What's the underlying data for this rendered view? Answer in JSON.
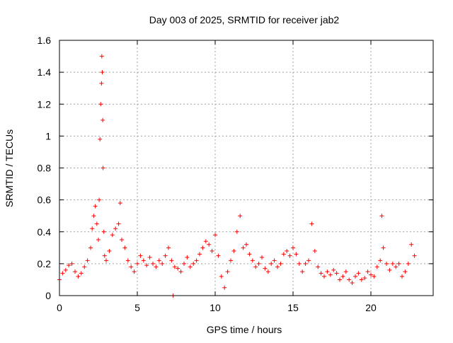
{
  "chart_data": {
    "type": "scatter",
    "title": "Day 003 of 2025, SRMTID for receiver jab2",
    "xlabel": "GPS time / hours",
    "ylabel": "SRMTID / TECUs",
    "xlim": [
      0,
      24
    ],
    "ylim": [
      0,
      1.6
    ],
    "xticks": [
      0,
      5,
      10,
      15,
      20
    ],
    "xtick_labels": [
      "0",
      "5",
      "10",
      "15",
      "20"
    ],
    "yticks": [
      0,
      0.2,
      0.4,
      0.6,
      0.8,
      1,
      1.2,
      1.4,
      1.6
    ],
    "ytick_labels": [
      "0",
      "0.2",
      "0.4",
      "0.6",
      "0.8",
      "1",
      "1.2",
      "1.4",
      "1.6"
    ],
    "grid": true,
    "marker": "+",
    "color": "#ff0000",
    "series": [
      {
        "name": "SRMTID",
        "x": [
          0.0,
          0.2,
          0.4,
          0.6,
          0.8,
          1.0,
          1.2,
          1.4,
          1.6,
          1.8,
          2.0,
          2.1,
          2.2,
          2.3,
          2.4,
          2.5,
          2.55,
          2.6,
          2.65,
          2.7,
          2.72,
          2.75,
          2.78,
          2.8,
          2.85,
          2.9,
          3.0,
          3.2,
          3.4,
          3.6,
          3.8,
          3.9,
          4.0,
          4.2,
          4.4,
          4.6,
          4.8,
          5.0,
          5.2,
          5.4,
          5.6,
          5.8,
          6.0,
          6.2,
          6.4,
          6.6,
          6.8,
          7.0,
          7.2,
          7.3,
          7.4,
          7.6,
          7.8,
          8.0,
          8.2,
          8.4,
          8.6,
          8.8,
          9.0,
          9.2,
          9.4,
          9.6,
          9.8,
          10.0,
          10.2,
          10.4,
          10.6,
          10.8,
          11.0,
          11.2,
          11.4,
          11.6,
          11.8,
          12.0,
          12.2,
          12.4,
          12.6,
          12.8,
          13.0,
          13.2,
          13.4,
          13.6,
          13.8,
          14.0,
          14.2,
          14.4,
          14.6,
          14.8,
          15.0,
          15.2,
          15.4,
          15.6,
          15.8,
          16.0,
          16.2,
          16.4,
          16.6,
          16.8,
          17.0,
          17.2,
          17.4,
          17.6,
          17.8,
          18.0,
          18.2,
          18.4,
          18.6,
          18.8,
          19.0,
          19.2,
          19.4,
          19.6,
          19.8,
          20.0,
          20.2,
          20.4,
          20.6,
          20.7,
          20.8,
          21.0,
          21.2,
          21.4,
          21.6,
          21.8,
          22.0,
          22.2,
          22.4,
          22.6,
          22.8
        ],
        "y": [
          0.1,
          0.14,
          0.16,
          0.19,
          0.2,
          0.15,
          0.12,
          0.14,
          0.18,
          0.22,
          0.3,
          0.42,
          0.5,
          0.56,
          0.45,
          0.35,
          0.6,
          0.98,
          1.2,
          1.33,
          1.5,
          1.4,
          1.1,
          0.8,
          0.4,
          0.25,
          0.22,
          0.28,
          0.38,
          0.42,
          0.45,
          0.58,
          0.35,
          0.3,
          0.22,
          0.18,
          0.15,
          0.2,
          0.25,
          0.22,
          0.19,
          0.24,
          0.2,
          0.18,
          0.22,
          0.2,
          0.25,
          0.3,
          0.22,
          0.0,
          0.18,
          0.17,
          0.15,
          0.2,
          0.24,
          0.18,
          0.2,
          0.22,
          0.26,
          0.3,
          0.34,
          0.32,
          0.28,
          0.38,
          0.25,
          0.12,
          0.05,
          0.15,
          0.22,
          0.28,
          0.4,
          0.5,
          0.3,
          0.32,
          0.26,
          0.22,
          0.18,
          0.2,
          0.24,
          0.17,
          0.15,
          0.2,
          0.22,
          0.18,
          0.2,
          0.26,
          0.28,
          0.25,
          0.3,
          0.26,
          0.2,
          0.15,
          0.2,
          0.22,
          0.45,
          0.28,
          0.18,
          0.14,
          0.12,
          0.15,
          0.13,
          0.16,
          0.14,
          0.1,
          0.12,
          0.15,
          0.1,
          0.08,
          0.12,
          0.14,
          0.1,
          0.11,
          0.15,
          0.13,
          0.12,
          0.18,
          0.22,
          0.5,
          0.3,
          0.2,
          0.16,
          0.2,
          0.18,
          0.2,
          0.12,
          0.15,
          0.2,
          0.32,
          0.25
        ]
      }
    ]
  }
}
